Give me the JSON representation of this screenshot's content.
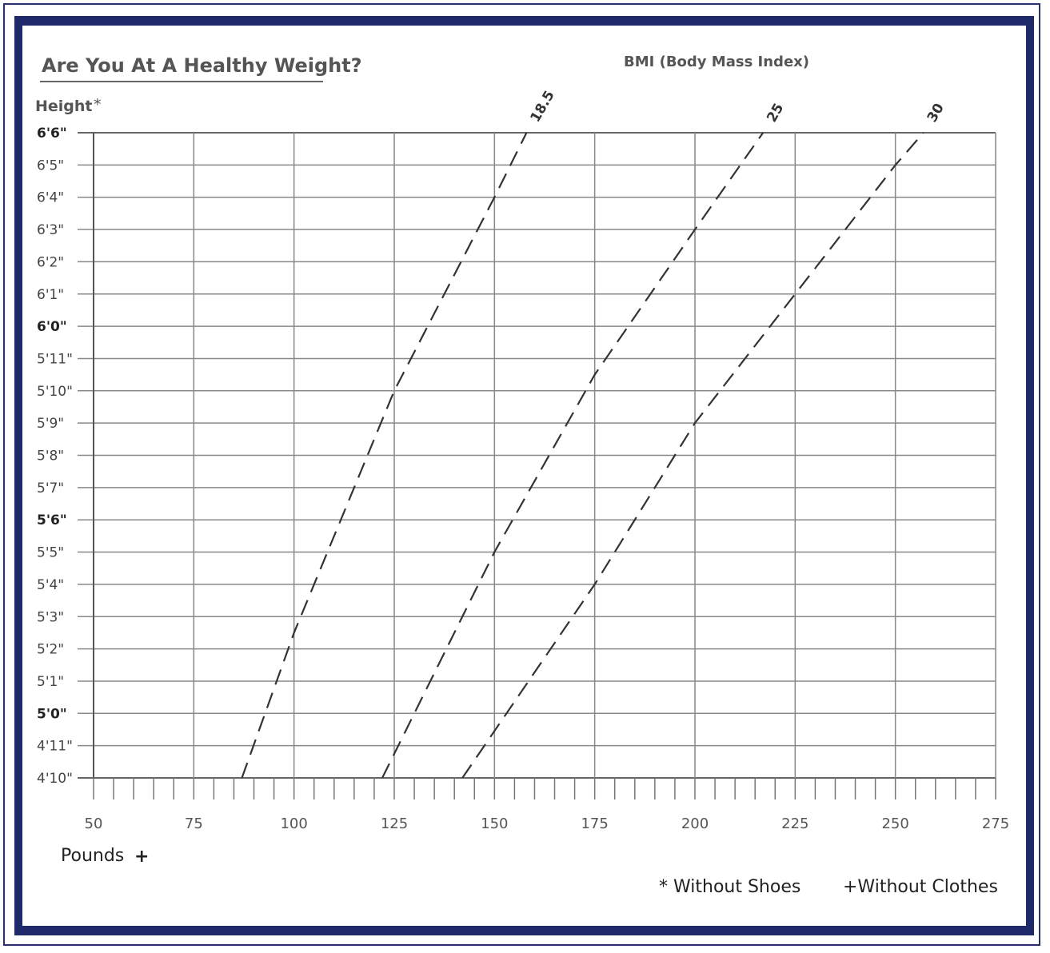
{
  "chart_data": {
    "type": "line",
    "title": "Are You At A Healthy Weight?",
    "subtitle": "BMI (Body Mass Index)",
    "ylabel": "Height",
    "ylabel_marker": "*",
    "xlabel": "Pounds",
    "xlabel_marker": "+",
    "footnotes": [
      "* Without Shoes",
      "+Without Clothes"
    ],
    "xlim": [
      50,
      275
    ],
    "x_ticks": [
      50,
      75,
      100,
      125,
      150,
      175,
      200,
      225,
      250,
      275
    ],
    "x_tick_labels": [
      "50",
      "75",
      "100",
      "125",
      "150",
      "175",
      "200",
      "225",
      "250",
      "275"
    ],
    "ylim_inches": [
      58,
      78
    ],
    "y_tick_inches": [
      78,
      77,
      76,
      75,
      74,
      73,
      72,
      71,
      70,
      69,
      68,
      67,
      66,
      65,
      64,
      63,
      62,
      61,
      60,
      59,
      58
    ],
    "y_tick_labels": [
      "6'6\"",
      "6'5\"",
      "6'4\"",
      "6'3\"",
      "6'2\"",
      "6'1\"",
      "6'0\"",
      "5'11\"",
      "5'10\"",
      "5'9\"",
      "5'8\"",
      "5'7\"",
      "5'6\"",
      "5'5\"",
      "5'4\"",
      "5'3\"",
      "5'2\"",
      "5'1\"",
      "5'0\"",
      "4'11\"",
      "4'10\""
    ],
    "y_tick_bold": [
      "6'6\"",
      "6'0\"",
      "5'6\"",
      "5'0\""
    ],
    "grid": true,
    "series": [
      {
        "name": "18.5",
        "x": [
          87,
          100,
          125,
          150,
          158
        ],
        "y": [
          58,
          62.5,
          70,
          76,
          78
        ]
      },
      {
        "name": "25",
        "x": [
          122,
          150,
          175,
          200,
          217
        ],
        "y": [
          58,
          65,
          70.5,
          75,
          78
        ]
      },
      {
        "name": "30",
        "x": [
          142,
          175,
          200,
          225,
          250,
          257
        ],
        "y": [
          58,
          64,
          69,
          73,
          77,
          78
        ]
      }
    ]
  }
}
